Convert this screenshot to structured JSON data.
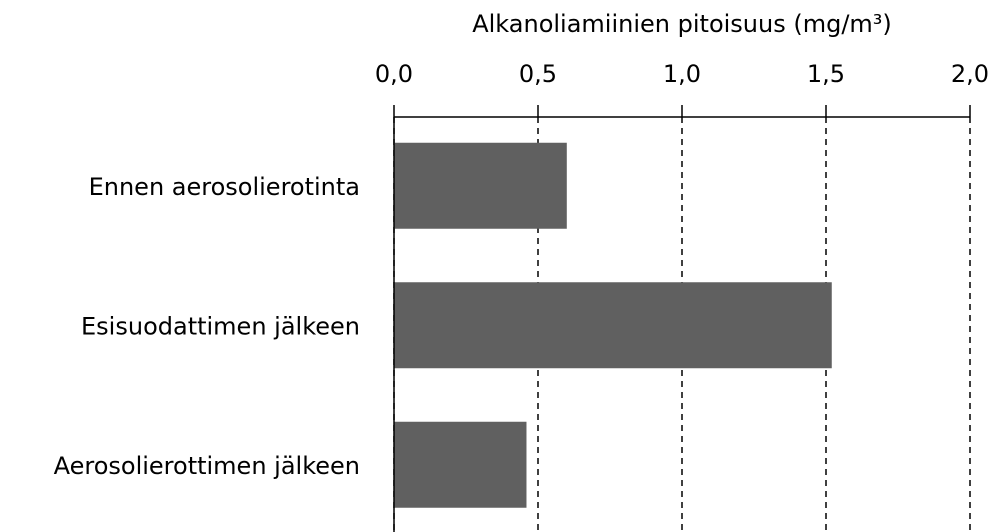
{
  "chart_data": {
    "type": "bar",
    "orientation": "horizontal",
    "x_label": "Alkanoliamiinien pitoisuus (mg/m³)",
    "categories": [
      "Ennen aerosolierotinta",
      "Esisuodattimen jälkeen",
      "Aerosolierottimen jälkeen"
    ],
    "values": [
      0.6,
      1.52,
      0.46
    ],
    "color": "#606060",
    "xlim": [
      0,
      2
    ],
    "xticks": [
      {
        "value": 0,
        "label": "0,0"
      },
      {
        "value": 0.5,
        "label": "0,5"
      },
      {
        "value": 1,
        "label": "1,0"
      },
      {
        "value": 1.5,
        "label": "1,5"
      },
      {
        "value": 2,
        "label": "2,0"
      }
    ],
    "grid": true
  }
}
